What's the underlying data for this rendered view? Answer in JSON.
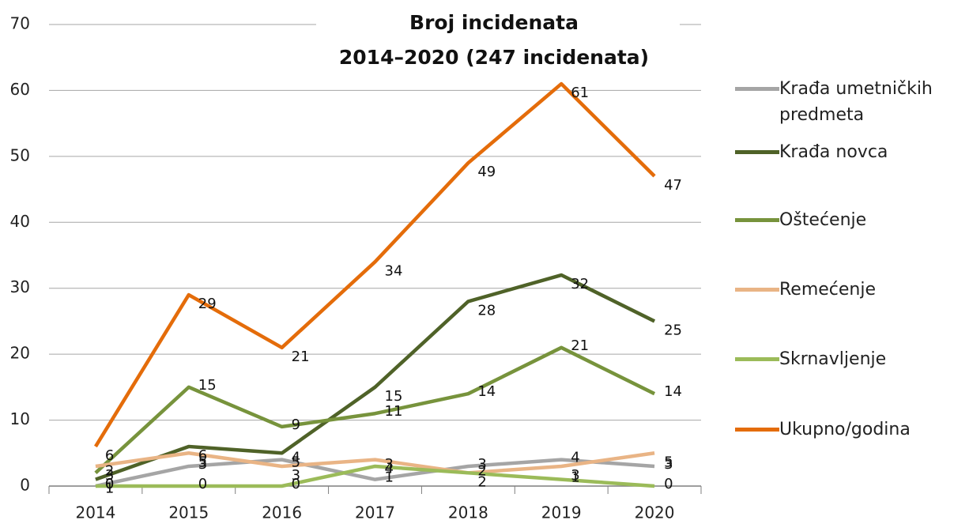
{
  "chart_data": {
    "type": "line",
    "title": "Broj incidenata",
    "subtitle": "2014–2020 (247 incidenata)",
    "categories": [
      "2014",
      "2015",
      "2016",
      "2017",
      "2018",
      "2019",
      "2020"
    ],
    "series": [
      {
        "name": "Krađa umetničkih predmeta",
        "color": "#a5a5a5",
        "values": [
          0,
          3,
          4,
          1,
          3,
          4,
          3
        ]
      },
      {
        "name": "Krađa novca",
        "color": "#4f6228",
        "values": [
          1,
          6,
          5,
          15,
          28,
          32,
          25
        ]
      },
      {
        "name": "Oštećenje",
        "color": "#77933c",
        "values": [
          2,
          15,
          9,
          11,
          14,
          21,
          14
        ]
      },
      {
        "name": "Remećenje",
        "color": "#e9b485",
        "values": [
          3,
          5,
          3,
          4,
          2,
          3,
          5
        ]
      },
      {
        "name": "Skrnavljenje",
        "color": "#9bbb59",
        "values": [
          0,
          0,
          0,
          3,
          2,
          1,
          0
        ]
      },
      {
        "name": "Ukupno/godina",
        "color": "#e46c0a",
        "values": [
          6,
          29,
          21,
          34,
          49,
          61,
          47
        ]
      }
    ],
    "ylim": [
      0,
      70
    ],
    "yticks": [
      0,
      10,
      20,
      30,
      40,
      50,
      60,
      70
    ],
    "grid": true,
    "legend": "right"
  }
}
